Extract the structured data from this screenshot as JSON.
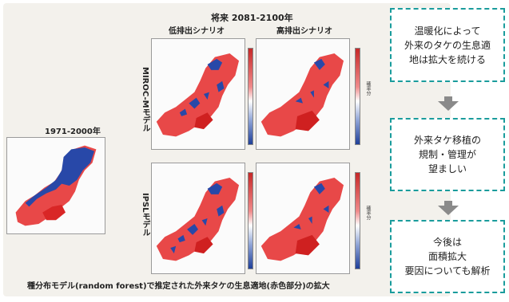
{
  "figure": {
    "future_title": "将来 2081-2100年",
    "low_scenario": "低排出シナリオ",
    "high_scenario": "高排出シナリオ",
    "past_title": "1971-2000年",
    "model_miroc": "MIROC-Mモデル",
    "model_ipsl": "IPSLモデル",
    "colorbar_label": "確率分",
    "caption": "種分布モデル(random forest)で推定された外来タケの生息適地(赤色部分)の拡大"
  },
  "flow": {
    "box1": [
      "温暖化によって",
      "外来のタケの生息適",
      "地は拡大を続ける"
    ],
    "box2": [
      "外来タケ移植の",
      "規制・管理が",
      "望ましい"
    ],
    "box3": [
      "今後は",
      "面積拡大",
      "要因についても解析"
    ]
  },
  "colors": {
    "accent_dashed": "#1a9c9c",
    "arrow": "#8a8a8a",
    "suitable_red": "#e03030",
    "unsuitable_blue": "#2848a8"
  }
}
